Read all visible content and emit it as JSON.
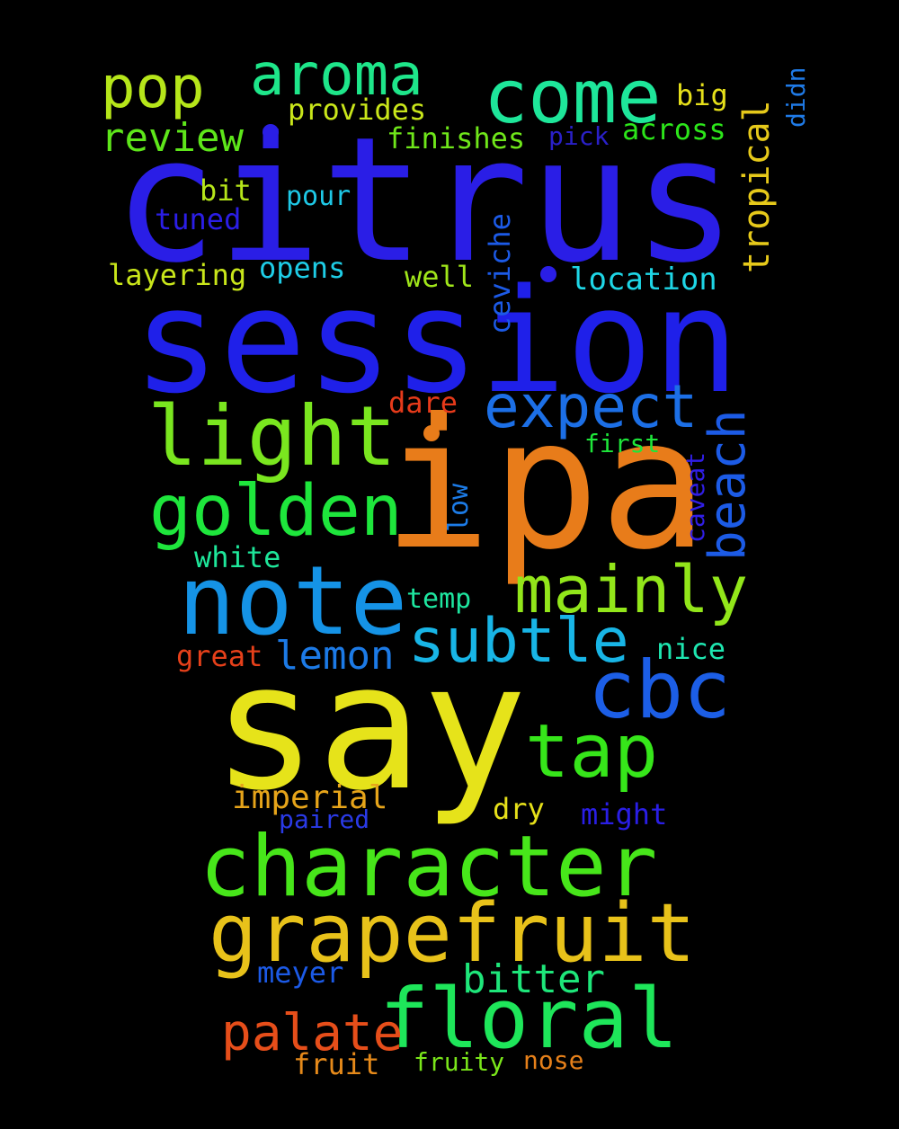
{
  "words": [
    {
      "text": "citrus",
      "color": "#2a1ee6"
    },
    {
      "text": "session",
      "color": "#1f20e9"
    },
    {
      "text": "ipa",
      "color": "#e87c1a"
    },
    {
      "text": "say",
      "color": "#e6e31a"
    },
    {
      "text": "character",
      "color": "#47e61a"
    },
    {
      "text": "note",
      "color": "#1593e6"
    },
    {
      "text": "grapefruit",
      "color": "#e8c21a"
    },
    {
      "text": "floral",
      "color": "#1ee65a"
    },
    {
      "text": "light",
      "color": "#7ae61f"
    },
    {
      "text": "come",
      "color": "#1ee69a"
    },
    {
      "text": "golden",
      "color": "#1ee63c"
    },
    {
      "text": "expect",
      "color": "#1c6fe6"
    },
    {
      "text": "mainly",
      "color": "#92e61a"
    },
    {
      "text": "subtle",
      "color": "#18b5e6"
    },
    {
      "text": "cbc",
      "color": "#1c5ee6"
    },
    {
      "text": "tap",
      "color": "#36e61a"
    },
    {
      "text": "aroma",
      "color": "#1ee68a"
    },
    {
      "text": "pop",
      "color": "#b6e61a"
    },
    {
      "text": "beach",
      "color": "#1c5be6"
    },
    {
      "text": "palate",
      "color": "#e64e1a"
    },
    {
      "text": "review",
      "color": "#5ee61a"
    },
    {
      "text": "lemon",
      "color": "#1c7ae6"
    },
    {
      "text": "bitter",
      "color": "#1ee67a"
    },
    {
      "text": "tropical",
      "color": "#e6c91a"
    },
    {
      "text": "imperial",
      "color": "#e6a41a"
    },
    {
      "text": "finishes",
      "color": "#6fe61a"
    },
    {
      "text": "provides",
      "color": "#c9e61a"
    },
    {
      "text": "across",
      "color": "#2ce61a"
    },
    {
      "text": "big",
      "color": "#e6e01a"
    },
    {
      "text": "pick",
      "color": "#2a20c8"
    },
    {
      "text": "didn",
      "color": "#1f7ae6"
    },
    {
      "text": "bit",
      "color": "#b6e61a"
    },
    {
      "text": "pour",
      "color": "#1ec8e6"
    },
    {
      "text": "tuned",
      "color": "#2b1ee6"
    },
    {
      "text": "layering",
      "color": "#c9e61a"
    },
    {
      "text": "opens",
      "color": "#1ecde6"
    },
    {
      "text": "well",
      "color": "#a0e61a"
    },
    {
      "text": "ceviche",
      "color": "#1c5ae6"
    },
    {
      "text": "location",
      "color": "#1ed6e6"
    },
    {
      "text": "dare",
      "color": "#e63a1a"
    },
    {
      "text": "first",
      "color": "#1ee63a"
    },
    {
      "text": "caveat",
      "color": "#301ee6"
    },
    {
      "text": "low",
      "color": "#1c7be6"
    },
    {
      "text": "white",
      "color": "#1ee69a"
    },
    {
      "text": "temp",
      "color": "#1ee6a0"
    },
    {
      "text": "nice",
      "color": "#1ee6b0"
    },
    {
      "text": "great",
      "color": "#e6401a"
    },
    {
      "text": "dry",
      "color": "#e6e01a"
    },
    {
      "text": "paired",
      "color": "#2a3ae6"
    },
    {
      "text": "might",
      "color": "#2a1ee6"
    },
    {
      "text": "meyer",
      "color": "#1c5ae6"
    },
    {
      "text": "fruit",
      "color": "#e68a1a"
    },
    {
      "text": "fruity",
      "color": "#7ae61a"
    },
    {
      "text": "nose",
      "color": "#e6801a"
    }
  ]
}
